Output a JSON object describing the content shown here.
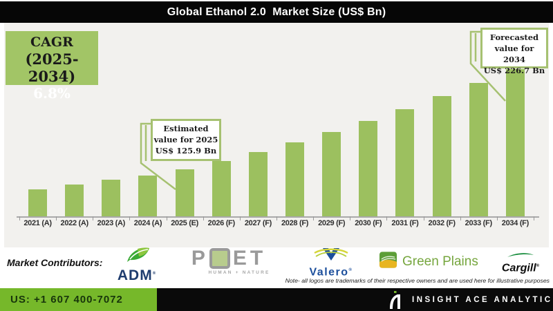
{
  "header": {
    "title": "Global Ethanol 2.0  Market Size (US$ Bn)"
  },
  "cagr": {
    "line1": "CAGR",
    "line2": "(2025-2034)",
    "line3": "6.8%"
  },
  "annotations": {
    "estimated": {
      "lines": [
        "Estimated",
        "value for 2025",
        "US$ 125.9 Bn"
      ]
    },
    "forecasted": {
      "lines": [
        "Forecasted",
        "value for 2034",
        "US$ 226.7 Bn"
      ]
    }
  },
  "chart_data": {
    "type": "bar",
    "title": "Global Ethanol 2.0 Market Size (US$ Bn)",
    "categories": [
      "2021 (A)",
      "2022 (A)",
      "2023 (A)",
      "2024 (A)",
      "2025 (E)",
      "2026 (F)",
      "2027 (F)",
      "2028 (F)",
      "2029 (F)",
      "2030 (F)",
      "2031 (F)",
      "2032 (F)",
      "2033 (F)",
      "2034 (F)"
    ],
    "values": [
      105.8,
      111.2,
      115.5,
      120.3,
      125.9,
      134.5,
      143.6,
      153.4,
      163.8,
      174.9,
      186.8,
      199.5,
      213.1,
      226.7
    ],
    "labeled_points": [
      {
        "category": "2025 (E)",
        "value": 125.9
      },
      {
        "category": "2034 (F)",
        "value": 226.7
      }
    ],
    "cagr_pct_2025_2034": 6.8,
    "xlabel": "",
    "ylabel": "US$ Bn",
    "ylim": [
      79,
      235
    ],
    "grid": false,
    "legend": false
  },
  "contributors": {
    "label": "Market Contributors:",
    "logos": [
      {
        "name": "ADM",
        "text": "ADM",
        "reg": "®"
      },
      {
        "name": "POET",
        "text_p": "P",
        "text_et": "ET",
        "tagline": "HUMAN + NATURE"
      },
      {
        "name": "Valero",
        "text": "Valero",
        "reg": "®"
      },
      {
        "name": "Green Plains",
        "text": "Green Plains"
      },
      {
        "name": "Cargill",
        "text": "Cargill",
        "reg": "®"
      }
    ],
    "note": "Note- all logos are trademarks of their respective owners and are used here for illustrative purposes"
  },
  "footer": {
    "phone": "US: +1 607 400-7072",
    "brand": "INSIGHT ACE ANALYTIC"
  },
  "colors": {
    "bar": "#9cc05f",
    "cagr_box": "#a2c566",
    "callout": "#a6c171",
    "footer_green": "#76b82a",
    "adm_navy": "#1e3c6e",
    "valero_blue": "#1c4f9c",
    "green_plains": "#76a63e",
    "poet_gray": "#9a9a9a"
  }
}
